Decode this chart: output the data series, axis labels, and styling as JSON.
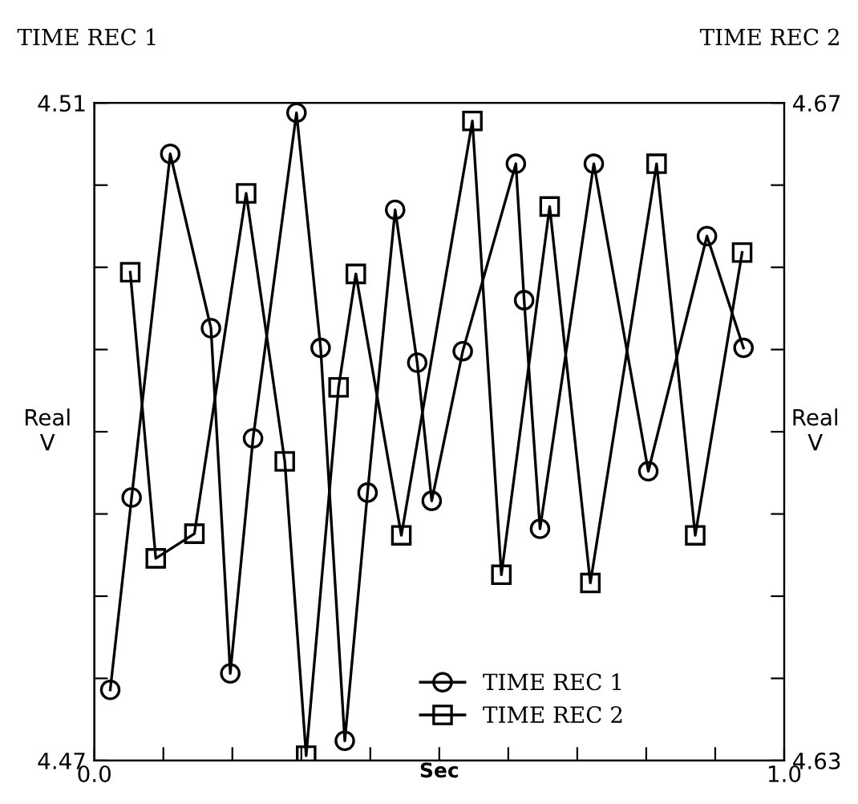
{
  "chart_data": {
    "type": "line",
    "xlabel": "Sec",
    "ylabel": "Real\nV",
    "y2label": "Real\nV",
    "annotations": [
      "TIME REC 1",
      "TIME REC 2"
    ],
    "series": [
      {
        "name": "TIME REC 1",
        "color": "#000000",
        "marker": "circle",
        "x": [
          0.023,
          0.054,
          0.11,
          0.169,
          0.197,
          0.23,
          0.293,
          0.328,
          0.363,
          0.396,
          0.436,
          0.468,
          0.489,
          0.534,
          0.611,
          0.623,
          0.646,
          0.724,
          0.803,
          0.888,
          0.941
        ],
        "values": [
          4.4743,
          4.486,
          4.5069,
          4.4963,
          4.4753,
          4.4896,
          4.5094,
          4.4951,
          4.4712,
          4.4863,
          4.5035,
          4.4942,
          4.4858,
          4.4949,
          4.5063,
          4.498,
          4.4841,
          4.5063,
          4.4876,
          4.5019,
          4.4951
        ]
      },
      {
        "name": "TIME REC 2",
        "color": "#000000",
        "marker": "square",
        "axis": "y2",
        "x": [
          0.052,
          0.089,
          0.145,
          0.22,
          0.276,
          0.307,
          0.354,
          0.379,
          0.445,
          0.548,
          0.59,
          0.66,
          0.719,
          0.815,
          0.871,
          0.939
        ],
        "values": [
          4.6597,
          4.6423,
          4.6438,
          4.6645,
          4.6482,
          4.6303,
          4.6527,
          4.6596,
          4.6437,
          4.6689,
          4.6413,
          4.6637,
          4.6408,
          4.6663,
          4.6437,
          4.6609
        ]
      }
    ],
    "xlim": [
      0,
      1.0
    ],
    "xticks": [
      {
        "value": 0,
        "label": "0.0"
      },
      {
        "value": 0.1,
        "label": null
      },
      {
        "value": 0.2,
        "label": null
      },
      {
        "value": 0.3,
        "label": null
      },
      {
        "value": 0.4,
        "label": null
      },
      {
        "value": 0.5,
        "label": null
      },
      {
        "value": 0.6,
        "label": null
      },
      {
        "value": 0.7,
        "label": null
      },
      {
        "value": 0.8,
        "label": null
      },
      {
        "value": 0.9,
        "label": null
      },
      {
        "value": 1.0,
        "label": "1.0"
      }
    ],
    "ylim": [
      4.47,
      4.51
    ],
    "yticks": [
      4.47,
      {
        "value": 4.475,
        "label": null
      },
      {
        "value": 4.48,
        "label": null
      },
      {
        "value": 4.485,
        "label": null
      },
      {
        "value": 4.49,
        "label": null
      },
      {
        "value": 4.495,
        "label": null
      },
      {
        "value": 4.5,
        "label": null
      },
      {
        "value": 4.505,
        "label": null
      },
      4.51
    ],
    "y2lim": [
      4.63,
      4.67
    ],
    "y2ticks": [
      4.63,
      {
        "value": 4.635,
        "label": null
      },
      {
        "value": 4.64,
        "label": null
      },
      {
        "value": 4.645,
        "label": null
      },
      {
        "value": 4.65,
        "label": null
      },
      {
        "value": 4.655,
        "label": null
      },
      {
        "value": 4.66,
        "label": null
      },
      {
        "value": 4.665,
        "label": null
      },
      4.67
    ],
    "legend": "bottom",
    "grid": false,
    "line_style": "solid"
  }
}
